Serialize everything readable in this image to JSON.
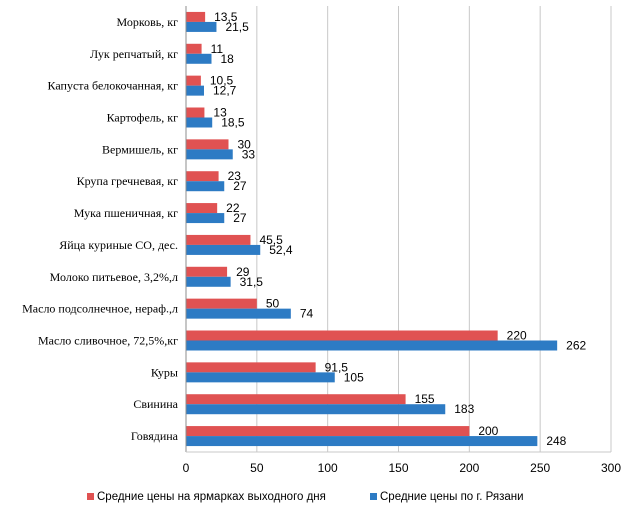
{
  "chart_data": {
    "type": "bar",
    "orientation": "horizontal",
    "title": "",
    "xlabel": "",
    "ylabel": "",
    "xlim": [
      0,
      300
    ],
    "ticks": [
      0,
      50,
      100,
      150,
      200,
      250,
      300
    ],
    "tick_labels": [
      "0",
      "50",
      "100",
      "150",
      "200",
      "250",
      "300"
    ],
    "grid": true,
    "legend_position": "bottom",
    "categories": [
      "Морковь, кг",
      "Лук репчатый, кг",
      "Капуста  белокочанная, кг",
      "Картофель, кг",
      "Вермишель, кг",
      "Крупа гречневая, кг",
      "Мука пшеничная, кг",
      "Яйца куриные СО, дес.",
      "Молоко питьевое, 3,2%,л",
      "Масло подсолнечное, нераф.,л",
      "Масло сливочное, 72,5%,кг",
      "Куры",
      "Свинина",
      "Говядина"
    ],
    "series": [
      {
        "name": "Средние  цены на ярмарках выходного  дня",
        "color": "#e05252",
        "values": [
          13.5,
          11,
          10.5,
          13,
          30,
          23,
          22,
          45.5,
          29,
          50,
          220,
          91.5,
          155,
          200
        ],
        "labels": [
          "13,5",
          "11",
          "10,5",
          "13",
          "30",
          "23",
          "22",
          "45,5",
          "29",
          "50",
          "220",
          "91,5",
          "155",
          "200"
        ]
      },
      {
        "name": "Средние  цены по г. Рязани",
        "color": "#2d7bc4",
        "values": [
          21.5,
          18,
          12.7,
          18.5,
          33,
          27,
          27,
          52.4,
          31.5,
          74,
          262,
          105,
          183,
          248
        ],
        "labels": [
          "21,5",
          "18",
          "12,7",
          "18,5",
          "33",
          "27",
          "27",
          "52,4",
          "31,5",
          "74",
          "262",
          "105",
          "183",
          "248"
        ]
      }
    ]
  }
}
